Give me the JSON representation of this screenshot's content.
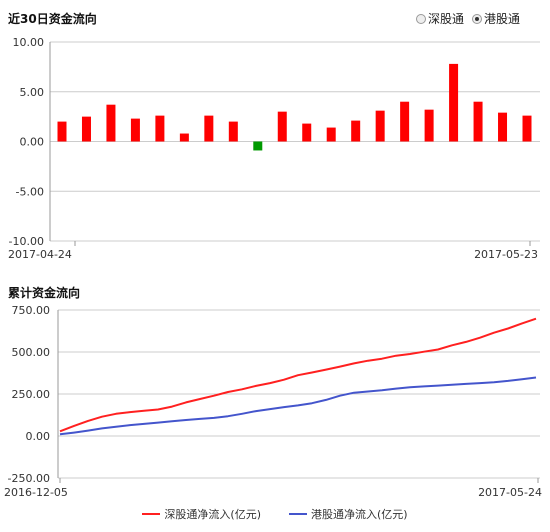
{
  "chart_data": [
    {
      "type": "bar",
      "title": "近30日资金流向",
      "ylim": [
        -10,
        10
      ],
      "yticks": [
        "10.00",
        "5.00",
        "0.00",
        "-5.00",
        "-10.00"
      ],
      "x_start_label": "2017-04-24",
      "x_end_label": "2017-05-23",
      "values": [
        2.0,
        2.5,
        3.7,
        2.3,
        2.6,
        0.8,
        2.6,
        2.0,
        -0.9,
        3.0,
        1.8,
        1.4,
        2.1,
        3.1,
        4.0,
        3.2,
        7.8,
        4.0,
        2.9,
        2.6
      ],
      "positive_color": "#ff0000",
      "negative_color": "#009900",
      "grid": true
    },
    {
      "type": "line",
      "title": "累计资金流向",
      "ylim": [
        -250,
        750
      ],
      "yticks": [
        "750.00",
        "500.00",
        "250.00",
        "0.00",
        "-250.00"
      ],
      "x_start_label": "2016-12-05",
      "x_end_label": "2017-05-24",
      "grid": true,
      "series": [
        {
          "name": "深股通净流入(亿元)",
          "color": "#ff2020",
          "values": [
            28,
            60,
            90,
            115,
            132,
            142,
            150,
            158,
            175,
            200,
            220,
            240,
            262,
            278,
            298,
            315,
            335,
            362,
            378,
            395,
            413,
            432,
            448,
            460,
            478,
            488,
            502,
            515,
            540,
            560,
            585,
            615,
            640,
            670,
            698
          ]
        },
        {
          "name": "港股通净流入(亿元)",
          "color": "#4455cc",
          "values": [
            10,
            20,
            32,
            45,
            55,
            65,
            72,
            80,
            88,
            95,
            102,
            108,
            118,
            132,
            148,
            160,
            172,
            182,
            195,
            215,
            240,
            258,
            265,
            272,
            282,
            290,
            295,
            300,
            305,
            310,
            315,
            320,
            328,
            338,
            348
          ]
        }
      ]
    }
  ],
  "radio": {
    "option1": "深股通",
    "option2": "港股通",
    "selected": "港股通"
  }
}
